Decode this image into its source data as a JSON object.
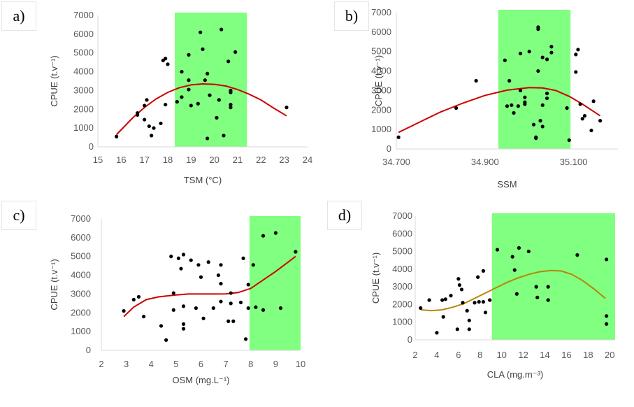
{
  "panels": [
    {
      "label": "a)"
    },
    {
      "label": "b)"
    },
    {
      "label": "c)"
    },
    {
      "label": "d)"
    }
  ],
  "colors": {
    "band": "#80ff80",
    "trend": "#cc0000",
    "trend_d": "#b8860b",
    "points": "#000000",
    "axis": "#d9d9d9",
    "tick_text": "#595959"
  },
  "chart_data": [
    {
      "type": "scatter",
      "panel": "a)",
      "xlabel": "TSM (°C)",
      "ylabel": "CPUE (t.v⁻¹)",
      "xlim": [
        15,
        24
      ],
      "ylim": [
        0,
        7000
      ],
      "xticks": [
        "15",
        "16",
        "17",
        "18",
        "19",
        "20",
        "21",
        "22",
        "23",
        "24"
      ],
      "yticks": [
        "0",
        "1000",
        "2000",
        "3000",
        "4000",
        "5000",
        "6000",
        "7000"
      ],
      "highlight_range": [
        18.3,
        21.4
      ],
      "points": [
        [
          15.8,
          550
        ],
        [
          16.7,
          1800
        ],
        [
          16.7,
          1700
        ],
        [
          17.0,
          1450
        ],
        [
          17.0,
          2200
        ],
        [
          17.1,
          2500
        ],
        [
          17.2,
          1100
        ],
        [
          17.3,
          600
        ],
        [
          17.4,
          1000
        ],
        [
          17.7,
          1250
        ],
        [
          17.8,
          4600
        ],
        [
          17.9,
          4700
        ],
        [
          17.9,
          2250
        ],
        [
          18.0,
          4400
        ],
        [
          18.4,
          2400
        ],
        [
          18.6,
          4000
        ],
        [
          18.6,
          2650
        ],
        [
          18.9,
          4900
        ],
        [
          18.9,
          3550
        ],
        [
          18.9,
          3050
        ],
        [
          19.0,
          2200
        ],
        [
          19.3,
          2300
        ],
        [
          19.4,
          6100
        ],
        [
          19.5,
          5200
        ],
        [
          19.6,
          3550
        ],
        [
          19.7,
          3900
        ],
        [
          19.8,
          2750
        ],
        [
          19.7,
          450
        ],
        [
          20.2,
          2500
        ],
        [
          20.3,
          6250
        ],
        [
          20.1,
          1550
        ],
        [
          20.4,
          600
        ],
        [
          20.7,
          3000
        ],
        [
          20.7,
          2900
        ],
        [
          20.7,
          2250
        ],
        [
          20.7,
          2100
        ],
        [
          20.6,
          4550
        ],
        [
          20.9,
          5050
        ],
        [
          23.1,
          2100
        ]
      ],
      "trend": [
        [
          15.8,
          650
        ],
        [
          16.5,
          1550
        ],
        [
          17.0,
          2100
        ],
        [
          17.5,
          2550
        ],
        [
          18.0,
          2900
        ],
        [
          18.5,
          3150
        ],
        [
          19.0,
          3300
        ],
        [
          19.5,
          3350
        ],
        [
          20.0,
          3330
        ],
        [
          20.5,
          3240
        ],
        [
          21.0,
          3050
        ],
        [
          21.5,
          2800
        ],
        [
          22.0,
          2500
        ],
        [
          22.5,
          2100
        ],
        [
          23.1,
          1650
        ]
      ]
    },
    {
      "type": "scatter",
      "panel": "b)",
      "xlabel": "SSM",
      "ylabel": "CPUE (t.v⁻¹)",
      "xlim": [
        34.7,
        35.2
      ],
      "ylim": [
        0,
        7000
      ],
      "xticks": [
        "34.700",
        "34.900",
        "35.100"
      ],
      "xtick_values": [
        34.7,
        34.9,
        35.1
      ],
      "yticks": [
        "0",
        "1000",
        "2000",
        "3000",
        "4000",
        "5000",
        "6000",
        "7000"
      ],
      "highlight_range": [
        34.93,
        35.093
      ],
      "points": [
        [
          34.705,
          600
        ],
        [
          34.835,
          2100
        ],
        [
          34.88,
          3500
        ],
        [
          34.945,
          4550
        ],
        [
          34.95,
          2200
        ],
        [
          34.955,
          3500
        ],
        [
          34.96,
          2250
        ],
        [
          34.965,
          1850
        ],
        [
          34.975,
          2200
        ],
        [
          34.98,
          4900
        ],
        [
          34.98,
          3000
        ],
        [
          34.99,
          2650
        ],
        [
          34.99,
          2300
        ],
        [
          34.99,
          2400
        ],
        [
          35.0,
          5000
        ],
        [
          35.01,
          1250
        ],
        [
          35.015,
          600
        ],
        [
          35.015,
          550
        ],
        [
          35.02,
          6150
        ],
        [
          35.02,
          6250
        ],
        [
          35.02,
          4000
        ],
        [
          35.025,
          1450
        ],
        [
          35.03,
          4700
        ],
        [
          35.03,
          2250
        ],
        [
          35.03,
          1150
        ],
        [
          35.04,
          2850
        ],
        [
          35.04,
          2600
        ],
        [
          35.04,
          4600
        ],
        [
          35.05,
          5250
        ],
        [
          35.05,
          4950
        ],
        [
          35.085,
          2100
        ],
        [
          35.09,
          450
        ],
        [
          35.105,
          3950
        ],
        [
          35.105,
          4850
        ],
        [
          35.11,
          5100
        ],
        [
          35.115,
          2300
        ],
        [
          35.12,
          1550
        ],
        [
          35.125,
          1700
        ],
        [
          35.14,
          950
        ],
        [
          35.145,
          2450
        ],
        [
          35.16,
          1450
        ]
      ],
      "trend": [
        [
          34.705,
          850
        ],
        [
          34.75,
          1350
        ],
        [
          34.8,
          1900
        ],
        [
          34.85,
          2350
        ],
        [
          34.9,
          2750
        ],
        [
          34.95,
          3020
        ],
        [
          35.0,
          3150
        ],
        [
          35.03,
          3130
        ],
        [
          35.06,
          3000
        ],
        [
          35.09,
          2700
        ],
        [
          35.12,
          2300
        ],
        [
          35.14,
          2000
        ],
        [
          35.16,
          1700
        ]
      ]
    },
    {
      "type": "scatter",
      "panel": "c)",
      "xlabel": "OSM (mg.L⁻¹)",
      "ylabel": "CPUE (t.v⁻¹)",
      "xlim": [
        2,
        10
      ],
      "ylim": [
        0,
        7000
      ],
      "xticks": [
        "2",
        "3",
        "4",
        "5",
        "6",
        "7",
        "8",
        "9",
        "10"
      ],
      "yticks": [
        "0",
        "1000",
        "2000",
        "3000",
        "4000",
        "5000",
        "6000",
        "7000"
      ],
      "highlight_range": [
        7.95,
        10
      ],
      "points": [
        [
          2.9,
          2100
        ],
        [
          3.3,
          2700
        ],
        [
          3.5,
          2850
        ],
        [
          3.7,
          1800
        ],
        [
          4.4,
          1300
        ],
        [
          4.6,
          550
        ],
        [
          4.8,
          5000
        ],
        [
          4.9,
          3050
        ],
        [
          4.9,
          2150
        ],
        [
          5.1,
          4900
        ],
        [
          5.2,
          4350
        ],
        [
          5.3,
          5100
        ],
        [
          5.3,
          2350
        ],
        [
          5.3,
          1400
        ],
        [
          5.3,
          1150
        ],
        [
          5.6,
          4800
        ],
        [
          5.8,
          2250
        ],
        [
          5.9,
          4550
        ],
        [
          6.0,
          3900
        ],
        [
          6.1,
          1700
        ],
        [
          6.3,
          4700
        ],
        [
          6.5,
          2250
        ],
        [
          6.7,
          4000
        ],
        [
          6.8,
          3550
        ],
        [
          6.8,
          4550
        ],
        [
          6.8,
          2600
        ],
        [
          7.1,
          1550
        ],
        [
          7.2,
          2500
        ],
        [
          7.2,
          3050
        ],
        [
          7.3,
          1550
        ],
        [
          7.6,
          2550
        ],
        [
          7.7,
          4900
        ],
        [
          7.8,
          600
        ],
        [
          7.9,
          3500
        ],
        [
          7.9,
          2250
        ],
        [
          8.1,
          4550
        ],
        [
          8.2,
          2300
        ],
        [
          8.5,
          6100
        ],
        [
          8.5,
          2150
        ],
        [
          9.0,
          6250
        ],
        [
          9.2,
          2250
        ],
        [
          9.8,
          5250
        ]
      ],
      "trend": [
        [
          2.9,
          1800
        ],
        [
          3.3,
          2300
        ],
        [
          3.8,
          2700
        ],
        [
          4.3,
          2850
        ],
        [
          5.0,
          2950
        ],
        [
          5.5,
          3000
        ],
        [
          6.0,
          3000
        ],
        [
          6.5,
          3000
        ],
        [
          7.0,
          3010
        ],
        [
          7.5,
          3080
        ],
        [
          8.0,
          3300
        ],
        [
          8.5,
          3750
        ],
        [
          9.0,
          4200
        ],
        [
          9.4,
          4600
        ],
        [
          9.8,
          5000
        ]
      ]
    },
    {
      "type": "scatter",
      "panel": "d)",
      "xlabel": "CLA (mg.m⁻³)",
      "ylabel": "CPUE (t.v⁻¹)",
      "xlim": [
        2,
        20.5
      ],
      "ylim": [
        0,
        7000
      ],
      "xticks": [
        "2",
        "4",
        "6",
        "8",
        "10",
        "12",
        "14",
        "16",
        "18",
        "20"
      ],
      "yticks": [
        "0",
        "1000",
        "2000",
        "3000",
        "4000",
        "5000",
        "6000",
        "7000"
      ],
      "highlight_range": [
        9.1,
        20.8
      ],
      "points": [
        [
          2.5,
          1800
        ],
        [
          3.3,
          2250
        ],
        [
          4.0,
          400
        ],
        [
          4.5,
          2250
        ],
        [
          4.6,
          1300
        ],
        [
          4.8,
          2300
        ],
        [
          5.3,
          2500
        ],
        [
          5.9,
          600
        ],
        [
          6.0,
          3450
        ],
        [
          6.1,
          3100
        ],
        [
          6.3,
          2850
        ],
        [
          6.4,
          2100
        ],
        [
          6.8,
          1650
        ],
        [
          7.0,
          1100
        ],
        [
          7.0,
          600
        ],
        [
          7.5,
          2100
        ],
        [
          7.8,
          3550
        ],
        [
          7.9,
          2150
        ],
        [
          8.3,
          3900
        ],
        [
          8.3,
          2150
        ],
        [
          8.5,
          1550
        ],
        [
          8.9,
          2250
        ],
        [
          9.6,
          5100
        ],
        [
          11.0,
          4700
        ],
        [
          11.2,
          3950
        ],
        [
          11.4,
          2600
        ],
        [
          11.6,
          5200
        ],
        [
          12.5,
          5000
        ],
        [
          13.2,
          3000
        ],
        [
          13.3,
          2400
        ],
        [
          14.3,
          3000
        ],
        [
          14.3,
          2250
        ],
        [
          17.0,
          4800
        ],
        [
          19.7,
          4550
        ],
        [
          19.7,
          1350
        ],
        [
          19.7,
          900
        ]
      ],
      "trend": [
        [
          2.5,
          1700
        ],
        [
          3.5,
          1650
        ],
        [
          4.5,
          1700
        ],
        [
          5.5,
          1850
        ],
        [
          6.5,
          2050
        ],
        [
          7.5,
          2350
        ],
        [
          8.5,
          2650
        ],
        [
          9.5,
          2950
        ],
        [
          10.5,
          3250
        ],
        [
          11.5,
          3500
        ],
        [
          12.5,
          3700
        ],
        [
          13.5,
          3850
        ],
        [
          14.5,
          3920
        ],
        [
          15.5,
          3900
        ],
        [
          16.5,
          3700
        ],
        [
          17.5,
          3350
        ],
        [
          18.5,
          2900
        ],
        [
          19.6,
          2350
        ]
      ]
    }
  ]
}
